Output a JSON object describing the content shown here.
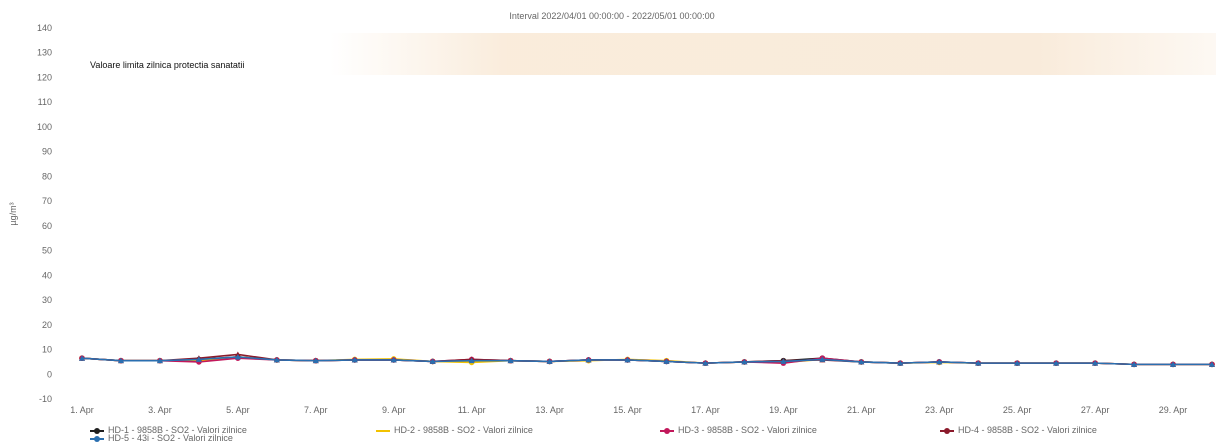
{
  "chart_data": {
    "type": "line",
    "title": "Interval 2022/04/01 00:00:00 - 2022/05/01 00:00:00",
    "ylabel": "µg/m³",
    "xlabel": "",
    "ylim": [
      -10,
      140
    ],
    "yticks": [
      -10,
      0,
      10,
      20,
      30,
      40,
      50,
      60,
      70,
      80,
      90,
      100,
      110,
      120,
      130,
      140
    ],
    "x_days": [
      1,
      2,
      3,
      4,
      5,
      6,
      7,
      8,
      9,
      10,
      11,
      12,
      13,
      14,
      15,
      16,
      17,
      18,
      19,
      20,
      21,
      22,
      23,
      24,
      25,
      26,
      27,
      28,
      29,
      30
    ],
    "xtick_labels": [
      "1. Apr",
      "3. Apr",
      "5. Apr",
      "7. Apr",
      "9. Apr",
      "11. Apr",
      "13. Apr",
      "15. Apr",
      "17. Apr",
      "19. Apr",
      "21. Apr",
      "23. Apr",
      "25. Apr",
      "27. Apr",
      "29. Apr"
    ],
    "annotation": "Valoare limita zilnica protectia sanatatii",
    "limit_value": 125,
    "grid": false,
    "legend_position": "bottom",
    "series": [
      {
        "name": "HD-1 - 9858B - SO2 - Valori zilnice",
        "color": "#1f1f1f",
        "marker": "circle",
        "values": [
          6.5,
          5.5,
          5.5,
          6,
          7,
          5.8,
          5.5,
          5.8,
          5.8,
          5.2,
          5.5,
          5.5,
          5.2,
          5.8,
          5.8,
          5.2,
          4.5,
          5,
          5.5,
          6.5,
          5,
          4.5,
          5,
          4.5,
          4.5,
          4.5,
          4.5,
          4,
          4,
          4
        ]
      },
      {
        "name": "HD-2 - 9858B - SO2 - Valori zilnice",
        "color": "#f2c200",
        "marker": "circle",
        "values": [
          6.5,
          5.5,
          5.5,
          5.5,
          7,
          5.8,
          5.5,
          6,
          6.2,
          5.2,
          4.8,
          5.5,
          5.2,
          5.5,
          6,
          5.5,
          4.5,
          5,
          4.8,
          6,
          5,
          4.5,
          4.8,
          4.5,
          4.5,
          4.5,
          4.5,
          4,
          4,
          4
        ]
      },
      {
        "name": "HD-3 - 9858B - SO2 - Valori zilnice",
        "color": "#c2185b",
        "marker": "circle",
        "values": [
          6.5,
          5.5,
          5.5,
          5,
          6.5,
          5.8,
          5.5,
          5.8,
          5.8,
          5.2,
          6,
          5.5,
          5.2,
          5.8,
          5.8,
          5.2,
          4.5,
          5,
          4.5,
          6.5,
          5,
          4.5,
          5,
          4.5,
          4.5,
          4.5,
          4.5,
          4,
          4,
          4
        ]
      },
      {
        "name": "HD-4 - 9858B - SO2 - Valori zilnice",
        "color": "#8b1a2b",
        "marker": "triangle",
        "values": [
          6.5,
          5.5,
          5.5,
          6.5,
          8,
          5.8,
          5.5,
          5.8,
          5.8,
          5.2,
          6,
          5.5,
          5.2,
          5.8,
          5.8,
          5.2,
          4.5,
          5,
          5.5,
          5.8,
          5,
          4.5,
          5,
          4.5,
          4.5,
          4.5,
          4.5,
          4,
          4,
          4
        ]
      },
      {
        "name": "HD-5 - 43i - SO2 - Valori zilnice",
        "color": "#2a6fb0",
        "marker": "triangle",
        "values": [
          6.5,
          5.5,
          5.5,
          6,
          7,
          5.8,
          5.5,
          5.8,
          5.8,
          5.2,
          5.5,
          5.5,
          5.2,
          5.8,
          5.8,
          5.2,
          4.5,
          5,
          5.2,
          6,
          5,
          4.5,
          5,
          4.5,
          4.5,
          4.5,
          4.5,
          4,
          4,
          4
        ]
      }
    ]
  }
}
